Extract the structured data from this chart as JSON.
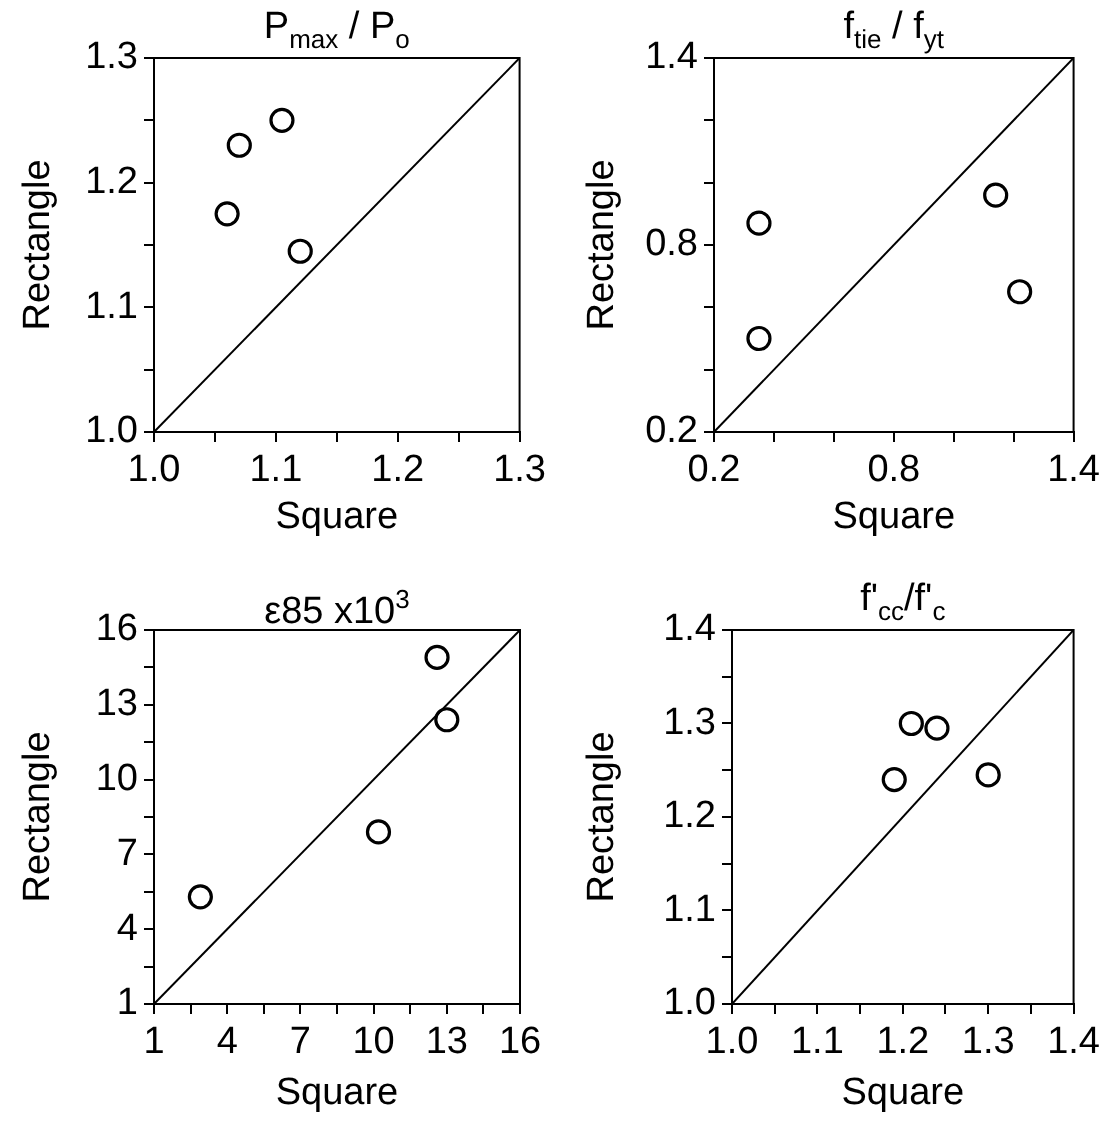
{
  "chart_data": [
    {
      "type": "scatter",
      "title": "P$_{max}$ / P$_{o}$",
      "xlabel": "Square",
      "ylabel": "Rectangle",
      "marker": "circle",
      "xlim": [
        1,
        1.3
      ],
      "xticks": [
        {
          "value": 1,
          "label": "1.0"
        },
        {
          "value": 1.05,
          "label": null
        },
        1.1,
        {
          "value": 1.15,
          "label": null
        },
        1.2,
        {
          "value": 1.25,
          "label": null
        },
        1.3
      ],
      "ylim": [
        1,
        1.3
      ],
      "yticks": [
        {
          "value": 1,
          "label": "1.0"
        },
        {
          "value": 1.05,
          "label": null
        },
        1.1,
        {
          "value": 1.15,
          "label": null
        },
        1.2,
        {
          "value": 1.25,
          "label": null
        },
        1.3
      ],
      "series": [
        {
          "type": "scatter",
          "color": "#000000",
          "x": [
            1.06,
            1.07,
            1.105,
            1.12
          ],
          "values": [
            1.175,
            1.23,
            1.25,
            1.145
          ]
        },
        {
          "type": "line",
          "color": "#000000",
          "marker": "none",
          "x": [
            1,
            1.3
          ],
          "values": [
            1,
            1.3
          ]
        }
      ]
    },
    {
      "type": "scatter",
      "title": "f$_{tie}$ / f$_{yt}$",
      "xlabel": "Square",
      "ylabel": "Rectangle",
      "marker": "circle",
      "xlim": [
        0.2,
        1.4
      ],
      "xticks": [
        0.2,
        {
          "value": 0.4,
          "label": null
        },
        {
          "value": 0.6,
          "label": null
        },
        0.8,
        {
          "value": 1,
          "label": null
        },
        {
          "value": 1.2,
          "label": null
        },
        1.4
      ],
      "ylim": [
        0.2,
        1.4
      ],
      "yticks": [
        0.2,
        {
          "value": 0.4,
          "label": null
        },
        {
          "value": 0.6,
          "label": null
        },
        0.8,
        {
          "value": 1,
          "label": null
        },
        {
          "value": 1.2,
          "label": null
        },
        1.4
      ],
      "series": [
        {
          "type": "scatter",
          "color": "#000000",
          "x": [
            0.35,
            0.35,
            1.14,
            1.22
          ],
          "values": [
            0.87,
            0.5,
            0.96,
            0.65
          ]
        },
        {
          "type": "line",
          "color": "#000000",
          "marker": "none",
          "x": [
            0.2,
            1.4
          ],
          "values": [
            0.2,
            1.4
          ]
        }
      ]
    },
    {
      "type": "scatter",
      "title": "ε85 x10$^{3}$",
      "xlabel": "Square",
      "ylabel": "Rectangle",
      "marker": "circle",
      "xlim": [
        1,
        16
      ],
      "xticks": [
        1,
        {
          "value": 2.5,
          "label": null
        },
        4,
        {
          "value": 5.5,
          "label": null
        },
        7,
        {
          "value": 8.5,
          "label": null
        },
        10,
        {
          "value": 11.5,
          "label": null
        },
        13,
        {
          "value": 14.5,
          "label": null
        },
        16
      ],
      "ylim": [
        1,
        16
      ],
      "yticks": [
        1,
        {
          "value": 2.5,
          "label": null
        },
        4,
        {
          "value": 5.5,
          "label": null
        },
        7,
        {
          "value": 8.5,
          "label": null
        },
        10,
        {
          "value": 11.5,
          "label": null
        },
        13,
        {
          "value": 14.5,
          "label": null
        },
        16
      ],
      "series": [
        {
          "type": "scatter",
          "color": "#000000",
          "x": [
            2.9,
            10.2,
            12.6,
            13
          ],
          "values": [
            5.3,
            7.9,
            14.9,
            12.4
          ]
        },
        {
          "type": "line",
          "color": "#000000",
          "marker": "none",
          "x": [
            1,
            16
          ],
          "values": [
            1,
            16
          ]
        }
      ]
    },
    {
      "type": "scatter",
      "title": "f'$_{cc}$/f'$_{c}$",
      "xlabel": "Square",
      "ylabel": "Rectangle",
      "marker": "circle",
      "xlim": [
        1,
        1.4
      ],
      "xticks": [
        {
          "value": 1,
          "label": "1.0"
        },
        {
          "value": 1.05,
          "label": null
        },
        1.1,
        {
          "value": 1.15,
          "label": null
        },
        1.2,
        {
          "value": 1.25,
          "label": null
        },
        1.3,
        {
          "value": 1.35,
          "label": null
        },
        1.4
      ],
      "ylim": [
        1,
        1.4
      ],
      "yticks": [
        {
          "value": 1,
          "label": "1.0"
        },
        {
          "value": 1.05,
          "label": null
        },
        1.1,
        {
          "value": 1.15,
          "label": null
        },
        1.2,
        {
          "value": 1.25,
          "label": null
        },
        1.3,
        {
          "value": 1.35,
          "label": null
        },
        1.4
      ],
      "series": [
        {
          "type": "scatter",
          "color": "#000000",
          "x": [
            1.19,
            1.21,
            1.24,
            1.3
          ],
          "values": [
            1.24,
            1.3,
            1.295,
            1.245
          ]
        },
        {
          "type": "line",
          "color": "#000000",
          "marker": "none",
          "x": [
            1,
            1.4
          ],
          "values": [
            1,
            1.4
          ]
        }
      ]
    }
  ]
}
